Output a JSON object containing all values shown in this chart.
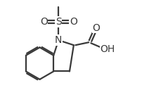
{
  "background_color": "#ffffff",
  "line_color": "#3a3a3a",
  "text_color": "#3a3a3a",
  "line_width": 1.6,
  "figsize": [
    2.12,
    1.55
  ],
  "dpi": 100,
  "xlim": [
    0,
    10
  ],
  "ylim": [
    0,
    7.3
  ]
}
